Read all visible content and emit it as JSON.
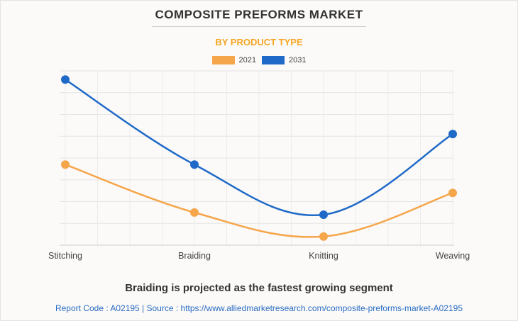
{
  "chart_data": {
    "type": "line",
    "title": "COMPOSITE PREFORMS MARKET",
    "subtitle": "BY PRODUCT TYPE",
    "categories": [
      "Stitching",
      "Braiding",
      "Knitting",
      "Weaving"
    ],
    "series": [
      {
        "name": "2021",
        "color": "#f5a54a",
        "values": [
          37,
          15,
          4,
          24
        ]
      },
      {
        "name": "2031",
        "color": "#1f6ac8",
        "values": [
          76,
          37,
          14,
          51
        ]
      }
    ],
    "ylim": [
      0,
      80
    ],
    "grid": true,
    "legend_position": "top-center",
    "xlabel": "",
    "ylabel": ""
  },
  "footer": {
    "headline": "Braiding is projected as the fastest growing segment",
    "source": "Report Code : A02195  |  Source : https://www.alliedmarketresearch.com/composite-preforms-market-A02195"
  }
}
